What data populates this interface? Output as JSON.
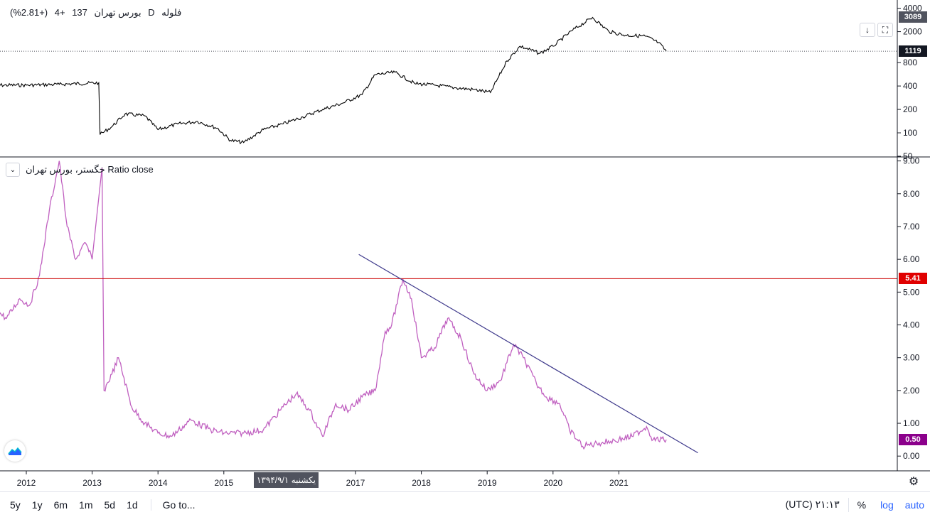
{
  "top_legend": {
    "symbol": "فلوله",
    "interval": "D",
    "exchange": "بورس تهران",
    "last": "137",
    "change": "+4",
    "change_pct": "(+2.81%)"
  },
  "bottom_legend": {
    "label": "خگستر، بورس تهران Ratio close"
  },
  "price_tags": {
    "top": "3089",
    "last": "1119",
    "hline": "5.41",
    "ratio": "0.50"
  },
  "date_tag": "یکشنبه ۱۳۹۴/۹/۱",
  "icons": {
    "download": "download-icon",
    "maximize": "maximize-icon",
    "collapse": "chevron-down-icon",
    "settings": "gear-icon",
    "logo": "tradingview-logo-icon"
  },
  "toolbar": {
    "timeframes": [
      "5y",
      "1y",
      "6m",
      "1m",
      "5d",
      "1d"
    ],
    "goto": "Go to...",
    "clock": "۲۱:۱۳ (UTC)",
    "percent": "%",
    "log": "log",
    "auto": "auto"
  },
  "colors": {
    "ratio_line": "#c060c0",
    "price_line": "#000000",
    "trend_line": "#3f3a8c",
    "hline": "#cc0000",
    "accent": "#2962ff"
  },
  "chart_data": [
    {
      "type": "line",
      "scale": "log",
      "x": [
        2011.5,
        2012.0,
        2012.5,
        2013.1,
        2013.12,
        2013.3,
        2013.5,
        2013.8,
        2014.0,
        2014.3,
        2014.6,
        2014.9,
        2015.1,
        2015.3,
        2015.6,
        2015.9,
        2016.2,
        2016.5,
        2016.8,
        2017.1,
        2017.3,
        2017.6,
        2017.9,
        2018.2,
        2018.5,
        2018.8,
        2019.05,
        2019.3,
        2019.5,
        2019.8,
        2020.0,
        2020.3,
        2020.6,
        2020.85,
        2021.1,
        2021.4,
        2021.6,
        2021.72
      ],
      "y": [
        410,
        410,
        420,
        440,
        95,
        120,
        175,
        165,
        110,
        130,
        140,
        115,
        80,
        75,
        110,
        130,
        160,
        200,
        240,
        310,
        560,
        600,
        430,
        410,
        380,
        360,
        330,
        840,
        1300,
        1050,
        1300,
        2100,
        3050,
        2000,
        1800,
        1750,
        1450,
        1119
      ],
      "x_ticks": [
        "2012",
        "2013",
        "2014",
        "2015",
        "2017",
        "2018",
        "2019",
        "2020",
        "2021"
      ],
      "y_ticks": [
        "50",
        "100",
        "200",
        "400",
        "800",
        "2000",
        "4000"
      ],
      "ylim": [
        50,
        4500
      ]
    },
    {
      "type": "line",
      "x": [
        2011.5,
        2011.7,
        2011.9,
        2012.05,
        2012.2,
        2012.35,
        2012.5,
        2012.62,
        2012.75,
        2012.9,
        2013.0,
        2013.08,
        2013.15,
        2013.18,
        2013.3,
        2013.4,
        2013.6,
        2013.8,
        2014.0,
        2014.2,
        2014.5,
        2014.8,
        2015.0,
        2015.3,
        2015.6,
        2015.9,
        2016.1,
        2016.3,
        2016.5,
        2016.7,
        2016.9,
        2017.1,
        2017.3,
        2017.45,
        2017.55,
        2017.72,
        2017.85,
        2018.0,
        2018.2,
        2018.4,
        2018.6,
        2018.8,
        2019.0,
        2019.2,
        2019.4,
        2019.55,
        2019.75,
        2019.9,
        2020.1,
        2020.25,
        2020.45,
        2020.7,
        2021.0,
        2021.2,
        2021.42,
        2021.52,
        2021.72
      ],
      "y": [
        4.5,
        4.2,
        4.8,
        4.6,
        5.5,
        7.5,
        9.0,
        7.0,
        6.0,
        6.5,
        6.0,
        7.5,
        8.8,
        2.0,
        2.5,
        3.0,
        1.5,
        1.0,
        0.7,
        0.6,
        1.1,
        0.8,
        0.7,
        0.7,
        0.8,
        1.5,
        1.9,
        1.4,
        0.6,
        1.6,
        1.4,
        1.8,
        2.0,
        3.8,
        4.0,
        5.4,
        4.8,
        3.0,
        3.3,
        4.2,
        3.6,
        2.5,
        2.0,
        2.3,
        3.4,
        3.0,
        2.2,
        1.8,
        1.6,
        0.8,
        0.3,
        0.4,
        0.5,
        0.6,
        0.9,
        0.5,
        0.5
      ],
      "trendline": {
        "x": [
          2017.05,
          2022.2
        ],
        "y": [
          6.15,
          0.1
        ]
      },
      "hline": 5.41,
      "y_ticks": [
        "0.00",
        "1.00",
        "2.00",
        "3.00",
        "4.00",
        "5.00",
        "6.00",
        "7.00",
        "8.00",
        "9.00"
      ],
      "ylim": [
        -0.45,
        9.1
      ]
    }
  ]
}
